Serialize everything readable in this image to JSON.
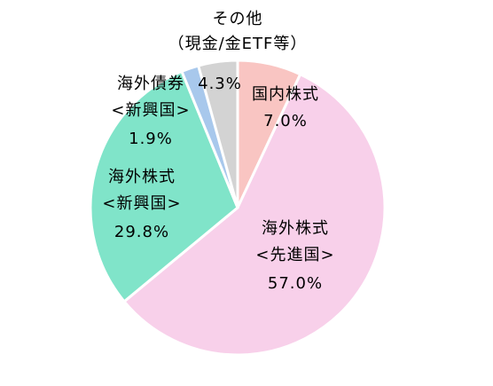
{
  "chart_data": {
    "type": "pie",
    "categories": [
      [
        "国内株式"
      ],
      [
        "海外株式",
        "<先進国>"
      ],
      [
        "海外株式",
        "<新興国>"
      ],
      [
        "海外債券",
        "<新興国>"
      ],
      [
        "その他",
        "（現金/金ETF等）"
      ]
    ],
    "values": [
      7.0,
      57.0,
      29.8,
      1.9,
      4.3
    ],
    "value_labels": [
      "7.0%",
      "57.0%",
      "29.8%",
      "1.9%",
      "4.3%"
    ],
    "colors": [
      "#f9c5c2",
      "#f8d0ea",
      "#80e4c9",
      "#a8c8ec",
      "#d3d3d3"
    ]
  }
}
